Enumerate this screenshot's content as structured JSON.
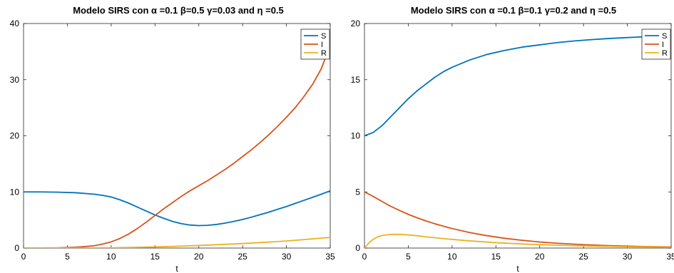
{
  "chart_data": [
    {
      "type": "line",
      "title": "Modelo SIRS con α =0.1 β=0.5 γ=0.03 and η =0.5",
      "xlabel": "t",
      "ylabel": "",
      "xlim": [
        0,
        35
      ],
      "ylim": [
        0,
        40
      ],
      "xticks": [
        "0",
        "5",
        "10",
        "15",
        "20",
        "25",
        "30",
        "35"
      ],
      "yticks": [
        "0",
        "10",
        "20",
        "30",
        "40"
      ],
      "grid": false,
      "legend_position": "top-right",
      "series": [
        {
          "name": "S",
          "color": "#0072BD",
          "x": [
            0,
            2,
            4,
            6,
            8,
            9,
            10,
            11,
            12,
            13,
            14,
            15,
            16,
            17,
            18,
            19,
            20,
            21,
            22,
            23,
            24,
            25,
            26,
            27,
            28,
            29,
            30,
            31,
            32,
            33,
            34,
            35
          ],
          "y": [
            10.0,
            10.0,
            9.95,
            9.85,
            9.6,
            9.4,
            9.1,
            8.6,
            8.0,
            7.3,
            6.6,
            5.9,
            5.3,
            4.75,
            4.35,
            4.1,
            4.0,
            4.05,
            4.2,
            4.45,
            4.75,
            5.1,
            5.5,
            5.95,
            6.4,
            6.9,
            7.4,
            7.95,
            8.5,
            9.05,
            9.6,
            10.2
          ]
        },
        {
          "name": "I",
          "color": "#D95319",
          "x": [
            0,
            2,
            4,
            6,
            8,
            9,
            10,
            11,
            12,
            13,
            14,
            15,
            16,
            17,
            18,
            19,
            20,
            21,
            22,
            23,
            24,
            25,
            26,
            27,
            28,
            29,
            30,
            31,
            32,
            33,
            34,
            35
          ],
          "y": [
            0.01,
            0.02,
            0.05,
            0.15,
            0.4,
            0.7,
            1.1,
            1.7,
            2.5,
            3.5,
            4.6,
            5.8,
            7.0,
            8.1,
            9.2,
            10.2,
            11.1,
            12.0,
            13.0,
            14.0,
            15.1,
            16.3,
            17.5,
            18.8,
            20.2,
            21.7,
            23.3,
            25.0,
            27.0,
            29.2,
            32.0,
            36.2
          ]
        },
        {
          "name": "R",
          "color": "#EDB120",
          "x": [
            0,
            5,
            10,
            15,
            20,
            25,
            30,
            35
          ],
          "y": [
            0.0,
            0.01,
            0.04,
            0.2,
            0.45,
            0.8,
            1.25,
            1.9
          ]
        }
      ]
    },
    {
      "type": "line",
      "title": "Modelo SIRS con α =0.1 β=0.1 γ=0.2 and η =0.5",
      "xlabel": "t",
      "ylabel": "",
      "xlim": [
        0,
        35
      ],
      "ylim": [
        0,
        20
      ],
      "xticks": [
        "0",
        "5",
        "10",
        "15",
        "20",
        "25",
        "30",
        "35"
      ],
      "yticks": [
        "0",
        "5",
        "10",
        "15",
        "20"
      ],
      "grid": false,
      "legend_position": "top-right",
      "series": [
        {
          "name": "S",
          "color": "#0072BD",
          "x": [
            0,
            1,
            2,
            3,
            4,
            5,
            6,
            7,
            8,
            9,
            10,
            12,
            14,
            16,
            18,
            20,
            22,
            24,
            26,
            28,
            30,
            32,
            34,
            35
          ],
          "y": [
            10.0,
            10.3,
            10.9,
            11.7,
            12.5,
            13.3,
            14.0,
            14.6,
            15.2,
            15.7,
            16.1,
            16.75,
            17.25,
            17.6,
            17.9,
            18.1,
            18.3,
            18.45,
            18.57,
            18.67,
            18.75,
            18.82,
            18.88,
            18.9
          ]
        },
        {
          "name": "I",
          "color": "#D95319",
          "x": [
            0,
            1,
            2,
            3,
            4,
            5,
            6,
            7,
            8,
            10,
            12,
            14,
            16,
            18,
            20,
            22,
            25,
            28,
            30,
            32,
            35
          ],
          "y": [
            5.0,
            4.6,
            4.15,
            3.72,
            3.35,
            3.0,
            2.7,
            2.42,
            2.17,
            1.74,
            1.38,
            1.1,
            0.87,
            0.69,
            0.54,
            0.43,
            0.3,
            0.21,
            0.17,
            0.13,
            0.1
          ]
        },
        {
          "name": "R",
          "color": "#EDB120",
          "x": [
            0,
            0.5,
            1,
            1.5,
            2,
            3,
            4,
            5,
            6,
            7,
            8,
            10,
            12,
            15,
            18,
            20,
            25,
            30,
            35
          ],
          "y": [
            0.0,
            0.45,
            0.78,
            1.0,
            1.12,
            1.22,
            1.22,
            1.17,
            1.1,
            1.0,
            0.92,
            0.77,
            0.64,
            0.48,
            0.36,
            0.3,
            0.19,
            0.12,
            0.08
          ]
        }
      ]
    }
  ]
}
